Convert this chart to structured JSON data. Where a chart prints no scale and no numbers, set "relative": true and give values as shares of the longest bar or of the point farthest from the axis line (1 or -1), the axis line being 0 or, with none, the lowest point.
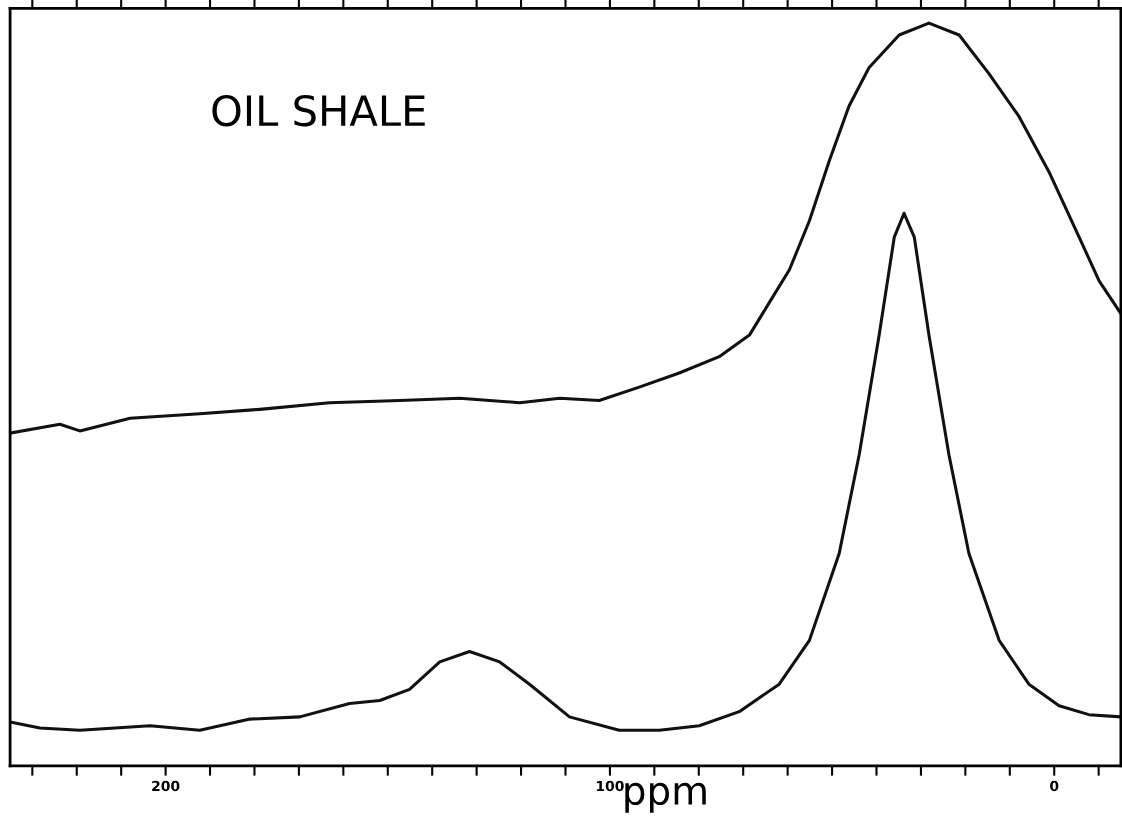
{
  "chart_data": {
    "type": "line",
    "title": "OIL SHALE",
    "xlabel": "ppm",
    "relative": true,
    "xlim": [
      235,
      -15
    ],
    "xticks": [
      {
        "value": 230,
        "label": null
      },
      {
        "value": 220,
        "label": null
      },
      {
        "value": 210,
        "label": null
      },
      200,
      {
        "value": 190,
        "label": null
      },
      {
        "value": 180,
        "label": null
      },
      {
        "value": 170,
        "label": null
      },
      {
        "value": 160,
        "label": null
      },
      {
        "value": 150,
        "label": null
      },
      {
        "value": 140,
        "label": null
      },
      {
        "value": 130,
        "label": null
      },
      {
        "value": 120,
        "label": null
      },
      {
        "value": 110,
        "label": null
      },
      100,
      {
        "value": 90,
        "label": null
      },
      {
        "value": 80,
        "label": null
      },
      {
        "value": 70,
        "label": null
      },
      {
        "value": 60,
        "label": null
      },
      {
        "value": 50,
        "label": null
      },
      {
        "value": 40,
        "label": null
      },
      {
        "value": 30,
        "label": null
      },
      {
        "value": 20,
        "label": null
      },
      {
        "value": 10,
        "label": null
      },
      0,
      {
        "value": -10,
        "label": null
      }
    ],
    "tick_labels": "x",
    "grid": false,
    "marker": "none",
    "line_style": "solid",
    "series": [
      {
        "color": "#111111",
        "x": [
          235,
          223.8,
          219.3,
          208.0,
          192.3,
          178.8,
          163.1,
          147.3,
          133.8,
          120.3,
          111.3,
          102.4,
          93.4,
          84.4,
          75.4,
          68.6,
          64.1,
          59.6,
          55.1,
          50.6,
          46.2,
          41.7,
          34.9,
          28.2,
          21.4,
          14.7,
          7.9,
          1.2,
          -5.6,
          -10.1,
          -15
        ],
        "values": [
          0.448,
          0.46,
          0.451,
          0.468,
          0.474,
          0.48,
          0.489,
          0.492,
          0.495,
          0.489,
          0.495,
          0.492,
          0.51,
          0.529,
          0.551,
          0.58,
          0.624,
          0.668,
          0.734,
          0.815,
          0.888,
          0.94,
          0.984,
          1.0,
          0.984,
          0.932,
          0.874,
          0.8,
          0.712,
          0.653,
          0.609
        ]
      },
      {
        "color": "#111111",
        "x": [
          235,
          228.3,
          219.3,
          203.5,
          192.3,
          181.0,
          169.8,
          158.6,
          151.8,
          145.1,
          138.3,
          131.6,
          124.8,
          118.1,
          109.1,
          97.9,
          88.9,
          79.9,
          70.9,
          61.9,
          55.1,
          48.4,
          43.9,
          39.4,
          36.0,
          33.8,
          31.5,
          28.2,
          23.7,
          19.2,
          12.4,
          5.7,
          -1.1,
          -7.8,
          -15
        ],
        "values": [
          0.059,
          0.051,
          0.048,
          0.054,
          0.048,
          0.063,
          0.066,
          0.084,
          0.088,
          0.103,
          0.14,
          0.154,
          0.14,
          0.11,
          0.066,
          0.048,
          0.048,
          0.054,
          0.073,
          0.11,
          0.169,
          0.286,
          0.419,
          0.58,
          0.712,
          0.744,
          0.712,
          0.58,
          0.419,
          0.286,
          0.169,
          0.11,
          0.081,
          0.069,
          0.066
        ]
      }
    ]
  }
}
